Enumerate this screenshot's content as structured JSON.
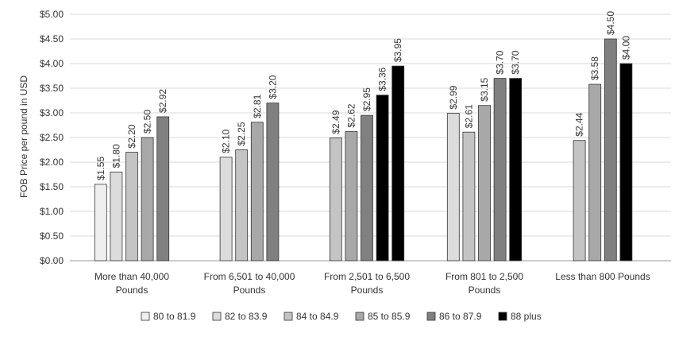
{
  "chart_data": {
    "type": "bar",
    "title": "",
    "xlabel": "",
    "ylabel": "FOB Price per pound in USD",
    "ylim": [
      0,
      5
    ],
    "y_ticks": [
      "$0.00",
      "$0.50",
      "$1.00",
      "$1.50",
      "$2.00",
      "$2.50",
      "$3.00",
      "$3.50",
      "$4.00",
      "$4.50",
      "$5.00"
    ],
    "grid": true,
    "legend_position": "bottom",
    "categories": [
      [
        "More than 40,000",
        "Pounds"
      ],
      [
        "From 6,501 to 40,000",
        "Pounds"
      ],
      [
        "From 2,501 to 6,500",
        "Pounds"
      ],
      [
        "From 801 to 2,500",
        "Pounds"
      ],
      [
        "Less than 800 Pounds"
      ]
    ],
    "series": [
      {
        "name": "80 to 81.9",
        "color": "#efefef",
        "values": [
          1.55,
          null,
          null,
          null,
          null
        ],
        "labels": [
          "$1.55",
          "",
          "",
          "",
          ""
        ]
      },
      {
        "name": "82 to 83.9",
        "color": "#dcdcdc",
        "values": [
          1.8,
          2.1,
          null,
          2.99,
          null
        ],
        "labels": [
          "$1.80",
          "$2.10",
          "",
          "$2.99",
          ""
        ]
      },
      {
        "name": "84 to 84.9",
        "color": "#c4c4c4",
        "values": [
          2.2,
          2.25,
          2.49,
          2.61,
          2.44
        ],
        "labels": [
          "$2.20",
          "$2.25",
          "$2.49",
          "$2.61",
          "$2.44"
        ]
      },
      {
        "name": "85 to 85.9",
        "color": "#a8a8a8",
        "values": [
          2.5,
          2.81,
          2.62,
          3.15,
          3.58
        ],
        "labels": [
          "$2.50",
          "$2.81",
          "$2.62",
          "$3.15",
          "$3.58"
        ]
      },
      {
        "name": "86 to 87.9",
        "color": "#808080",
        "values": [
          2.92,
          3.2,
          2.95,
          3.7,
          4.5
        ],
        "labels": [
          "$2.92",
          "$3.20",
          "$2.95",
          "$3.70",
          "$4.50"
        ]
      },
      {
        "name": "88 plus",
        "color": "#000000",
        "values": [
          null,
          null,
          3.36,
          3.7,
          4.0
        ],
        "labels": [
          "",
          "",
          "$3.36",
          "$3.70",
          "$4.00"
        ]
      }
    ],
    "extra_bars": [
      {
        "category_index": 2,
        "series_index": 5,
        "value": 3.95,
        "label": "$3.95"
      }
    ]
  }
}
